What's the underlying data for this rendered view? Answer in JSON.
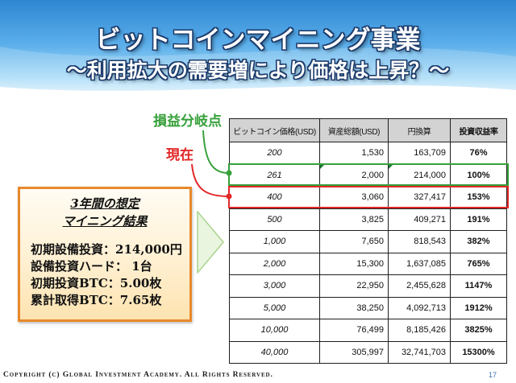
{
  "slide": {
    "title": "ビットコインマイニング事業",
    "subtitle": "～利用拡大の需要増により価格は上昇？～"
  },
  "callouts": {
    "breakeven_label": "損益分岐点",
    "current_label": "現在"
  },
  "summary": {
    "heading": [
      "3年間の想定",
      "マイニング結果"
    ],
    "items": [
      "初期設備投資：214,000円",
      "設備投資ハード： 1台",
      "初期投資BTC：5.00枚",
      "累計取得BTC：7.65枚"
    ]
  },
  "table": {
    "headers": [
      "ビットコイン価格(USD)",
      "資産総額(USD)",
      "円換算",
      "投資収益率"
    ],
    "rows": [
      [
        "200",
        "1,530",
        "163,709",
        "76%"
      ],
      [
        "261",
        "2,000",
        "214,000",
        "100%"
      ],
      [
        "400",
        "3,060",
        "327,417",
        "153%"
      ],
      [
        "500",
        "3,825",
        "409,271",
        "191%"
      ],
      [
        "1,000",
        "7,650",
        "818,543",
        "382%"
      ],
      [
        "2,000",
        "15,300",
        "1,637,085",
        "765%"
      ],
      [
        "3,000",
        "22,950",
        "2,455,628",
        "1147%"
      ],
      [
        "5,000",
        "38,250",
        "4,092,713",
        "1912%"
      ],
      [
        "10,000",
        "76,499",
        "8,185,426",
        "3825%"
      ],
      [
        "40,000",
        "305,997",
        "32,741,703",
        "15300%"
      ]
    ]
  },
  "footer": {
    "copyright": "Copyright (c) Global Investment Academy. All Rights Reserved.",
    "page_number": "17"
  },
  "icons": {
    "flow_arrow": "right-arrow-icon",
    "cell_marker": "cell-indicator-icon"
  },
  "colors": {
    "breakeven": "#36a03a",
    "current": "#e22828",
    "summary_border": "#e8892b",
    "header_blue": "#2f86d2",
    "title_outline": "#1c3c6c",
    "page_number": "#3a6fb5",
    "table_header_bg": "#d3d3d3"
  }
}
